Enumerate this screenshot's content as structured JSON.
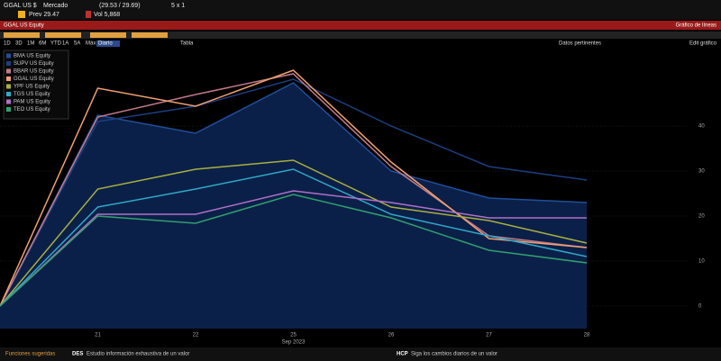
{
  "header": {
    "ticker": "GGAL US $",
    "market": "Mercado",
    "quote": "(29.53 / 29.69)",
    "size": "5 x 1",
    "prev": "Prev 29.47",
    "volume": "Vol 5,868",
    "security": "GGAL US Equity",
    "view": "Gráfico de líneas"
  },
  "toolbar": {
    "periods": [
      "1D",
      "3D",
      "1M",
      "6M",
      "YTD",
      "1A",
      "5A",
      "Máx"
    ],
    "frequency": "Diario",
    "table": "Tabla",
    "related": "Datos pertinentes",
    "edit": "Edit gráfico"
  },
  "chart_data": {
    "type": "line",
    "categories": [
      null,
      "21",
      "22",
      "25",
      "26",
      "27",
      "28"
    ],
    "x_label": "Sep 2023",
    "ylim": [
      -5,
      57
    ],
    "yticks": [
      0,
      10,
      20,
      30,
      40
    ],
    "series": [
      {
        "name": "BMA US Equity",
        "color": "#1f4f9a",
        "area": true,
        "values": [
          0,
          42.4,
          38.4,
          49.6,
          30,
          24,
          23
        ]
      },
      {
        "name": "SUPV US Equity",
        "color": "#1b3f80",
        "values": [
          0,
          41,
          44.4,
          50.4,
          40,
          31,
          28
        ]
      },
      {
        "name": "BBAR US Equity",
        "color": "#c07a8a",
        "values": [
          0,
          42,
          47,
          51.6,
          31,
          15.6,
          13
        ]
      },
      {
        "name": "GGAL US Equity",
        "color": "#f0a070",
        "values": [
          0,
          48.4,
          44.4,
          52.4,
          32,
          15,
          13
        ]
      },
      {
        "name": "YPF US Equity",
        "color": "#a8b040",
        "values": [
          0,
          26,
          30.4,
          32.4,
          22,
          19,
          14
        ]
      },
      {
        "name": "TGS US Equity",
        "color": "#30a8c8",
        "values": [
          0,
          22,
          26,
          30.4,
          20.4,
          15.6,
          11
        ]
      },
      {
        "name": "PAM US Equity",
        "color": "#b070c8",
        "values": [
          0,
          20.4,
          20.4,
          25.6,
          23,
          19.6,
          19.6
        ]
      },
      {
        "name": "TEO US Equity",
        "color": "#30a070",
        "values": [
          0,
          20,
          18.4,
          24.8,
          19.6,
          12.4,
          9.6
        ]
      }
    ]
  },
  "footer": {
    "title": "Funciones sugeridas",
    "items": [
      {
        "code": "DES",
        "text": "Estudio información exhaustiva de un valor"
      },
      {
        "code": "HCP",
        "text": "Siga los cambios diarios de un valor"
      }
    ]
  }
}
